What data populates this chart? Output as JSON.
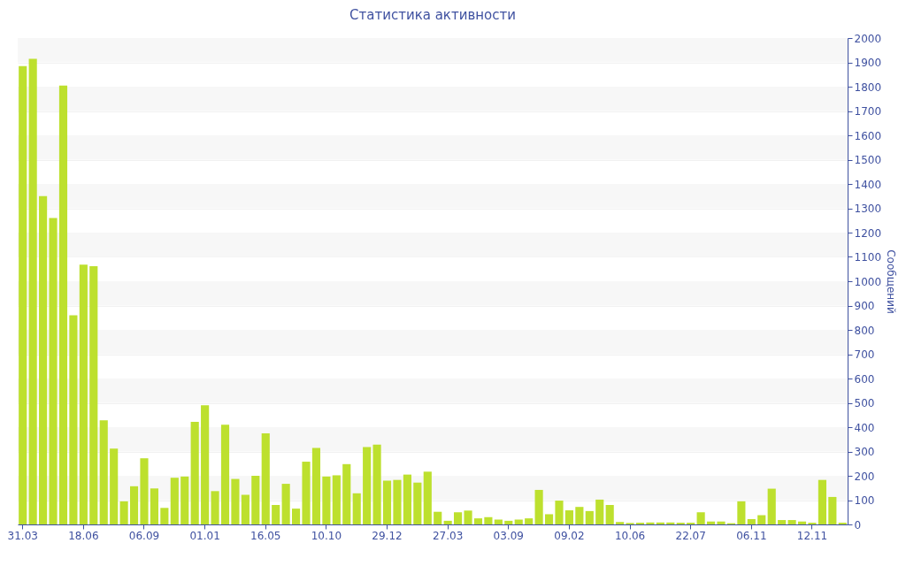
{
  "chart_data": {
    "type": "bar",
    "title": "Статистика активности",
    "ylabel": "Сообщений",
    "categories": [
      "31.03",
      null,
      null,
      null,
      null,
      null,
      "18.06",
      null,
      null,
      null,
      null,
      null,
      "06.09",
      null,
      null,
      null,
      null,
      null,
      "01.01",
      null,
      null,
      null,
      null,
      null,
      "16.05",
      null,
      null,
      null,
      null,
      null,
      "10.10",
      null,
      null,
      null,
      null,
      null,
      "29.12",
      null,
      null,
      null,
      null,
      null,
      "27.03",
      null,
      null,
      null,
      null,
      null,
      "03.09",
      null,
      null,
      null,
      null,
      null,
      "09.02",
      null,
      null,
      null,
      null,
      null,
      "10.06",
      null,
      null,
      null,
      null,
      null,
      "22.07",
      null,
      null,
      null,
      null,
      null,
      "06.11",
      null,
      null,
      null,
      null,
      null,
      "12.11",
      null,
      null,
      null
    ],
    "values": [
      1885,
      1915,
      1350,
      1260,
      1805,
      860,
      1068,
      1062,
      428,
      312,
      95,
      157,
      272,
      148,
      68,
      192,
      197,
      422,
      490,
      137,
      410,
      187,
      122,
      200,
      375,
      80,
      167,
      65,
      258,
      315,
      197,
      202,
      248,
      128,
      318,
      328,
      180,
      183,
      205,
      172,
      217,
      52,
      15,
      50,
      57,
      25,
      30,
      20,
      15,
      20,
      25,
      142,
      42,
      98,
      58,
      72,
      55,
      102,
      80,
      10,
      6,
      7,
      8,
      8,
      8,
      7,
      7,
      50,
      12,
      12,
      5,
      95,
      22,
      38,
      147,
      18,
      18,
      12,
      7,
      183,
      113,
      7
    ],
    "color": "#bde02e",
    "ylim": [
      0,
      2000
    ],
    "yticks": [
      0,
      100,
      200,
      300,
      400,
      500,
      600,
      700,
      800,
      900,
      1000,
      1100,
      1200,
      1300,
      1400,
      1500,
      1600,
      1700,
      1800,
      1900,
      2000
    ],
    "grid": "y"
  }
}
